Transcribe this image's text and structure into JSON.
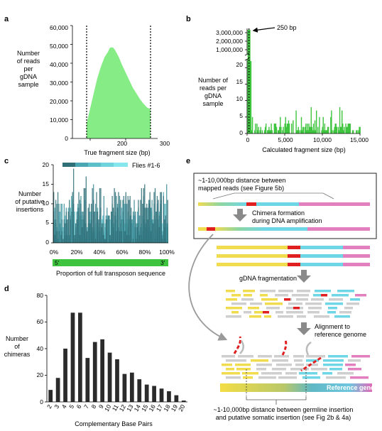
{
  "panel_letters": [
    "a",
    "b",
    "c",
    "d",
    "e"
  ],
  "colors": {
    "green": "#86ec86",
    "green_dark": "#3ec43e",
    "bar_dark": "#2b2b2b",
    "arrow_gray": "#8a8a8a",
    "red": "#e02020",
    "yellow": "#f1dc50",
    "cyan": "#6fd6e6",
    "pink": "#e27fbe",
    "lightgray": "#cfcfcf"
  },
  "chart_data": [
    {
      "panel": "a",
      "type": "area",
      "ylabel": "Number of reads per gDNA sample",
      "ylabel_lines": [
        "Number",
        "of reads",
        "per",
        "gDNA",
        "sample"
      ],
      "xlabel": "True fragment size (bp)",
      "xticks": [
        "200",
        "300"
      ],
      "yticks": [
        "0",
        "10,000",
        "20,000",
        "30,000",
        "40,000",
        "50,000",
        "60,000"
      ],
      "xlim": [
        150,
        390
      ],
      "ylim": [
        0,
        60000
      ],
      "cutoffs": [
        190,
        370
      ],
      "x": [
        190,
        200,
        210,
        220,
        230,
        240,
        250,
        255,
        260,
        265,
        270,
        280,
        290,
        300,
        310,
        320,
        330,
        340,
        350,
        360,
        370
      ],
      "y": [
        8000,
        16000,
        24000,
        32000,
        38000,
        43000,
        46000,
        48000,
        48500,
        48200,
        47000,
        43500,
        39000,
        35000,
        31000,
        27000,
        24000,
        21000,
        18500,
        16500,
        15500
      ]
    },
    {
      "panel": "b",
      "type": "bar",
      "ylabel": "Number of reads per gDNA sample",
      "ylabel_lines": [
        "Number of",
        "reads per",
        "gDNA",
        "sample"
      ],
      "xlabel": "Calculated fragment size (bp)",
      "xticks": [
        "0",
        "5,000",
        "10,000",
        "15,000"
      ],
      "yticks_upper": [
        "1,000,000",
        "2,000,000",
        "3,000,000"
      ],
      "yticks_lower": [
        "0",
        "5",
        "10",
        "15",
        "20"
      ],
      "xlim": [
        0,
        15000
      ],
      "annotation": "250 bp",
      "peak": {
        "x": 250,
        "y": 3000000
      }
    },
    {
      "panel": "c",
      "type": "bar",
      "legend": "Flies #1-6",
      "ylabel": "Number of putative insertions",
      "ylabel_lines": [
        "Number",
        "of putative",
        "insertions"
      ],
      "xlabel": "Proportion of full transposon sequence",
      "xticks": [
        "0%",
        "20%",
        "40%",
        "60%",
        "80%",
        "100%"
      ],
      "yticks": [
        "0",
        "5",
        "10",
        "15",
        "20"
      ],
      "ylim": [
        0,
        20
      ],
      "series_colors": [
        "#2f6f78",
        "#3c8b95",
        "#4aa6b1",
        "#5cbfc9",
        "#6fd4dc",
        "#86e7ec"
      ],
      "transposon_ends": [
        "5'",
        "3'"
      ]
    },
    {
      "panel": "d",
      "type": "bar",
      "ylabel": "Number of chimeras",
      "ylabel_lines": [
        "Number",
        "of",
        "chimeras"
      ],
      "xlabel": "Complementary Base Pairs",
      "categories": [
        "2",
        "3",
        "4",
        "5",
        "6",
        "7",
        "8",
        "9",
        "10",
        "11",
        "12",
        "13",
        "14",
        "15",
        "16",
        "17",
        "18",
        "19",
        "20"
      ],
      "values": [
        9,
        18,
        40,
        67,
        67,
        33,
        45,
        47,
        37,
        32,
        21,
        22,
        17,
        13,
        12,
        10,
        8,
        5,
        1
      ],
      "yticks": [
        "0",
        "20",
        "40",
        "60",
        "80"
      ],
      "ylim": [
        0,
        80
      ]
    }
  ],
  "panel_e": {
    "box_text_lines": [
      "~1-10,000bp distance between",
      "mapped reads (see Figure 5b)"
    ],
    "chimera_lines": [
      "Chimera formation",
      "during DNA amplification"
    ],
    "fragmentation": "gDNA fragmentation",
    "alignment_lines": [
      "Alignment to",
      "reference genome"
    ],
    "reference_label": "Reference genome",
    "bottom_lines": [
      "~1-10,000bp distance between germline insertion",
      "and putative somatic insertion (see Fig 2b & 4a)"
    ]
  }
}
